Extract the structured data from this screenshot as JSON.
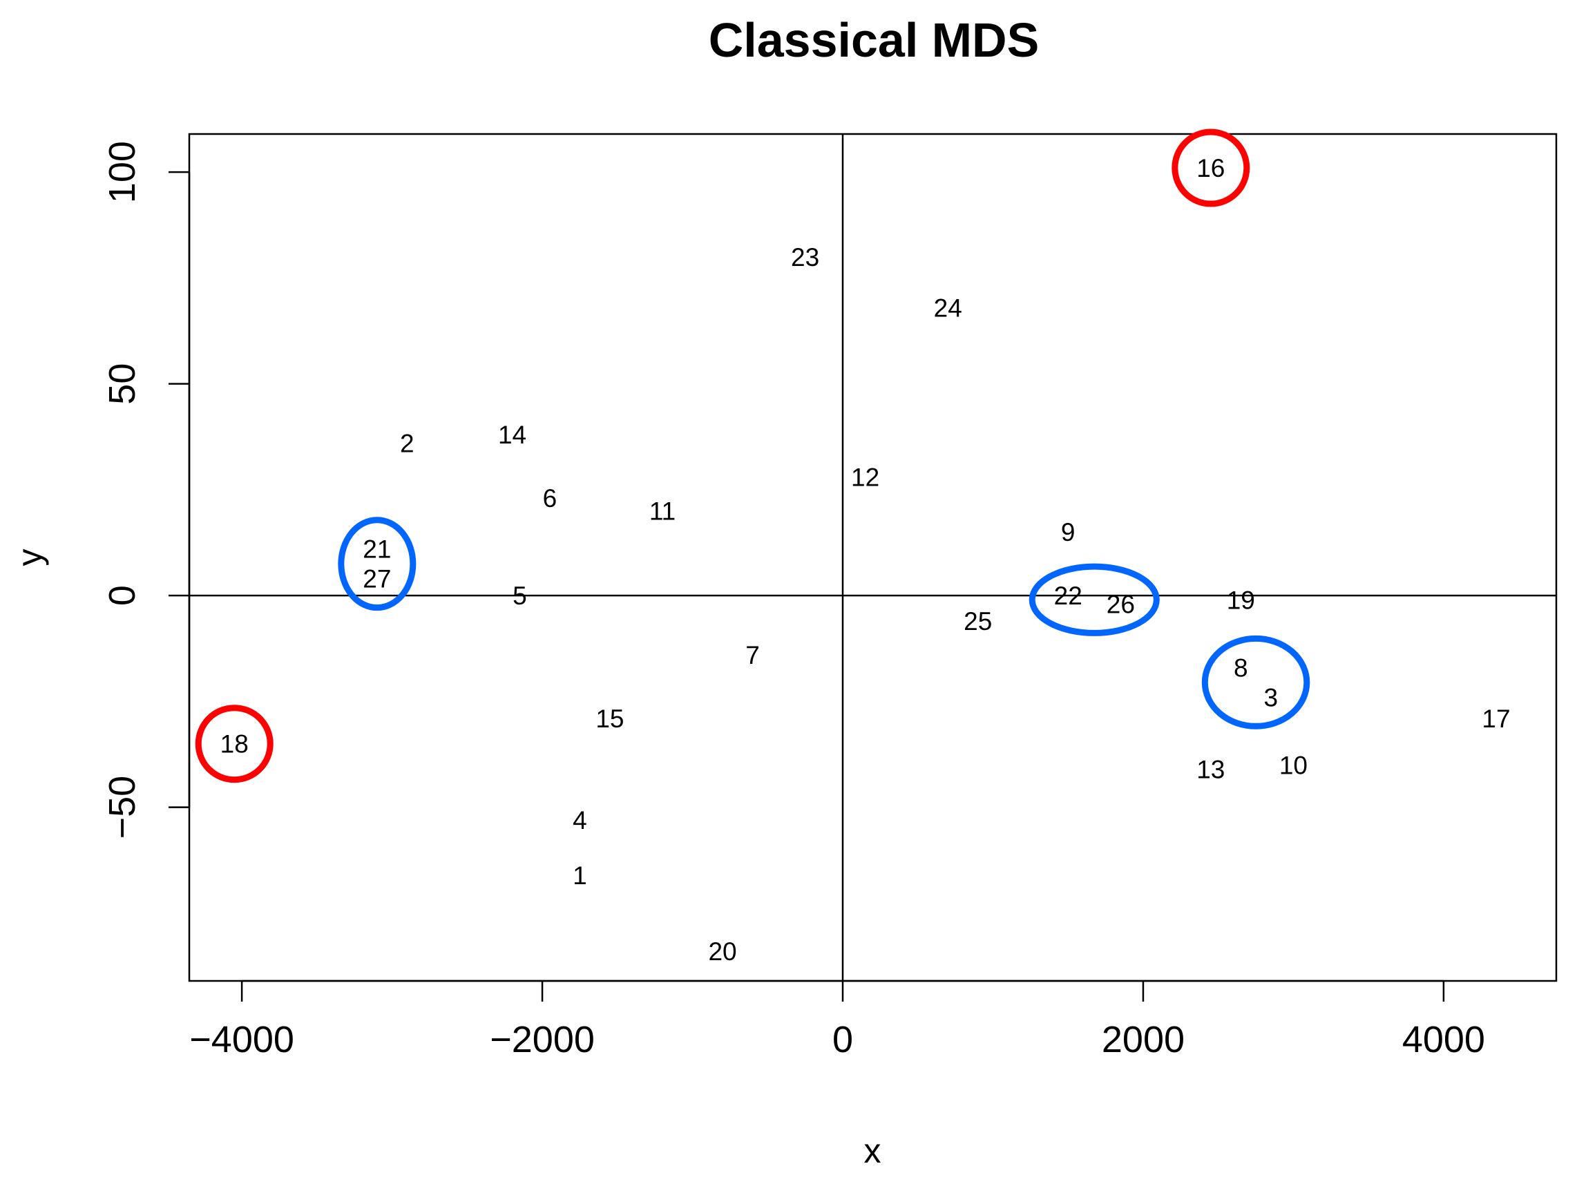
{
  "chart_data": {
    "type": "scatter",
    "title": "Classical MDS",
    "xlabel": "x",
    "ylabel": "y",
    "xlim": [
      -4350,
      4750
    ],
    "ylim": [
      -91,
      109
    ],
    "x_ticks": [
      -4000,
      -2000,
      0,
      2000,
      4000
    ],
    "x_tick_labels": [
      "−4000",
      "−2000",
      "0",
      "2000",
      "4000"
    ],
    "y_ticks": [
      -50,
      0,
      50,
      100
    ],
    "y_tick_labels": [
      "−50",
      "0",
      "50",
      "100"
    ],
    "reference_lines": {
      "x": 0,
      "y": 0
    },
    "grid": false,
    "points": [
      {
        "label": "1",
        "x": -1750,
        "y": -66
      },
      {
        "label": "2",
        "x": -2900,
        "y": 36
      },
      {
        "label": "3",
        "x": 2850,
        "y": -24
      },
      {
        "label": "4",
        "x": -1750,
        "y": -53
      },
      {
        "label": "5",
        "x": -2150,
        "y": 0
      },
      {
        "label": "6",
        "x": -1950,
        "y": 23
      },
      {
        "label": "7",
        "x": -600,
        "y": -14
      },
      {
        "label": "8",
        "x": 2650,
        "y": -17
      },
      {
        "label": "9",
        "x": 1500,
        "y": 15
      },
      {
        "label": "10",
        "x": 3000,
        "y": -40
      },
      {
        "label": "11",
        "x": -1200,
        "y": 20
      },
      {
        "label": "12",
        "x": 150,
        "y": 28
      },
      {
        "label": "13",
        "x": 2450,
        "y": -41
      },
      {
        "label": "14",
        "x": -2200,
        "y": 38
      },
      {
        "label": "15",
        "x": -1550,
        "y": -29
      },
      {
        "label": "16",
        "x": 2450,
        "y": 101
      },
      {
        "label": "17",
        "x": 4350,
        "y": -29
      },
      {
        "label": "18",
        "x": -4050,
        "y": -35
      },
      {
        "label": "19",
        "x": 2650,
        "y": -1
      },
      {
        "label": "20",
        "x": -800,
        "y": -84
      },
      {
        "label": "21",
        "x": -3100,
        "y": 11
      },
      {
        "label": "22",
        "x": 1500,
        "y": 0
      },
      {
        "label": "23",
        "x": -250,
        "y": 80
      },
      {
        "label": "24",
        "x": 700,
        "y": 68
      },
      {
        "label": "25",
        "x": 900,
        "y": -6
      },
      {
        "label": "26",
        "x": 1850,
        "y": -2
      },
      {
        "label": "27",
        "x": -3100,
        "y": 4
      }
    ],
    "highlight_circles": [
      {
        "color": "#ff0000",
        "members": [
          "16"
        ]
      },
      {
        "color": "#ff0000",
        "members": [
          "18"
        ]
      },
      {
        "color": "#0066ff",
        "members": [
          "21",
          "27"
        ]
      },
      {
        "color": "#0066ff",
        "members": [
          "22",
          "26"
        ]
      },
      {
        "color": "#0066ff",
        "members": [
          "8",
          "3"
        ]
      }
    ]
  }
}
